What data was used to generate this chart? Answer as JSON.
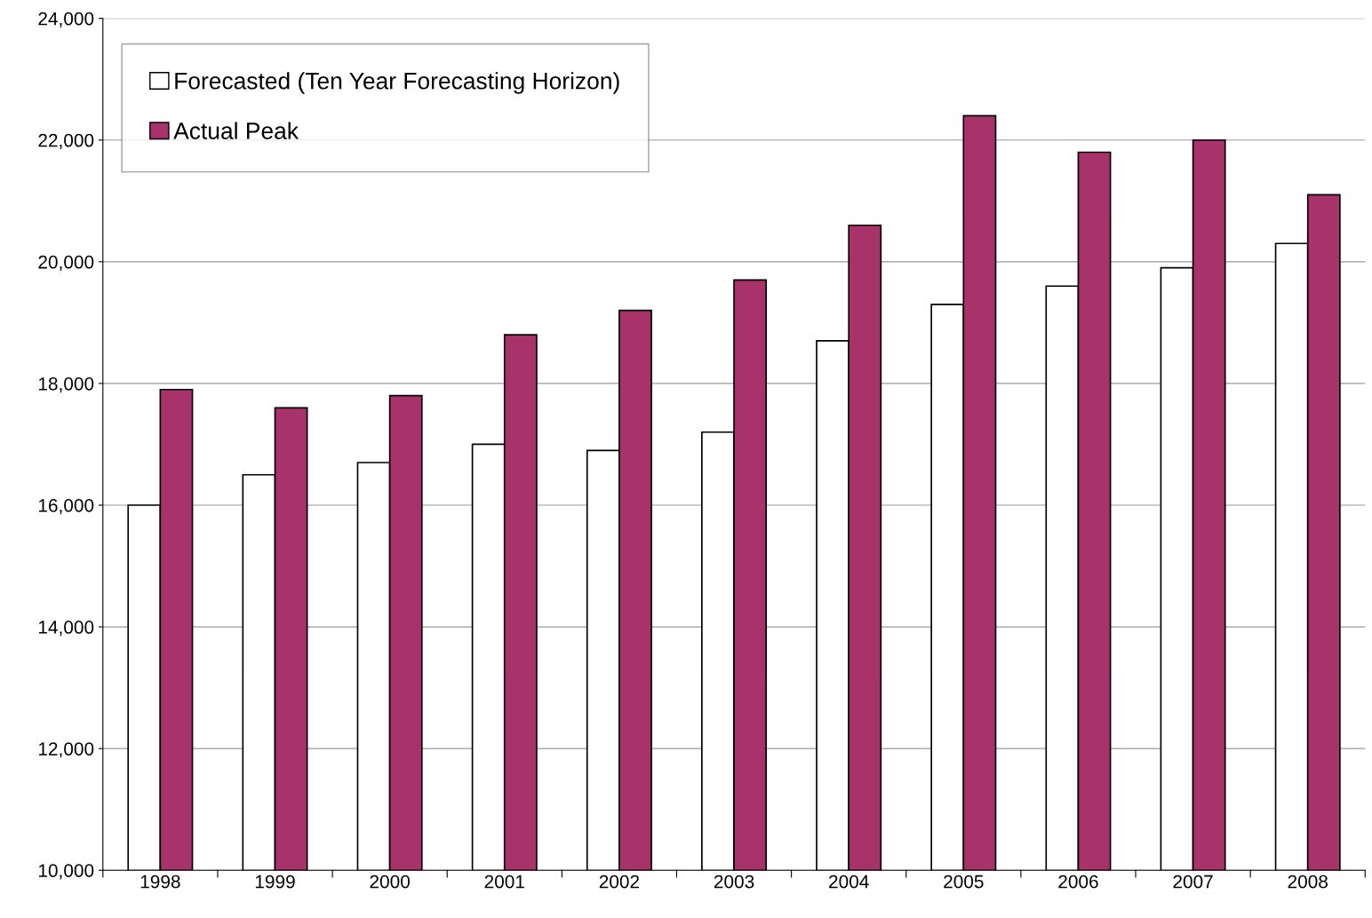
{
  "chart_data": {
    "type": "bar",
    "categories": [
      "1998",
      "1999",
      "2000",
      "2001",
      "2002",
      "2003",
      "2004",
      "2005",
      "2006",
      "2007",
      "2008"
    ],
    "series": [
      {
        "name": "Forecasted (Ten Year Forecasting Horizon)",
        "color": "#ffffff",
        "values": [
          16000,
          16500,
          16700,
          17000,
          16900,
          17200,
          18700,
          19300,
          19600,
          19900,
          20300
        ]
      },
      {
        "name": "Actual Peak",
        "color": "#a8336a",
        "values": [
          17900,
          17600,
          17800,
          18800,
          19200,
          19700,
          20600,
          22400,
          21800,
          22000,
          21100
        ]
      }
    ],
    "ylim": [
      10000,
      24000
    ],
    "yticks": [
      {
        "value": 10000,
        "label": "10,000"
      },
      {
        "value": 12000,
        "label": "12,000"
      },
      {
        "value": 14000,
        "label": "14,000"
      },
      {
        "value": 16000,
        "label": "16,000"
      },
      {
        "value": 18000,
        "label": "18,000"
      },
      {
        "value": 20000,
        "label": "20,000"
      },
      {
        "value": 22000,
        "label": "22,000"
      },
      {
        "value": 24000,
        "label": "24,000"
      }
    ],
    "grid": "y",
    "legend": "top left"
  }
}
